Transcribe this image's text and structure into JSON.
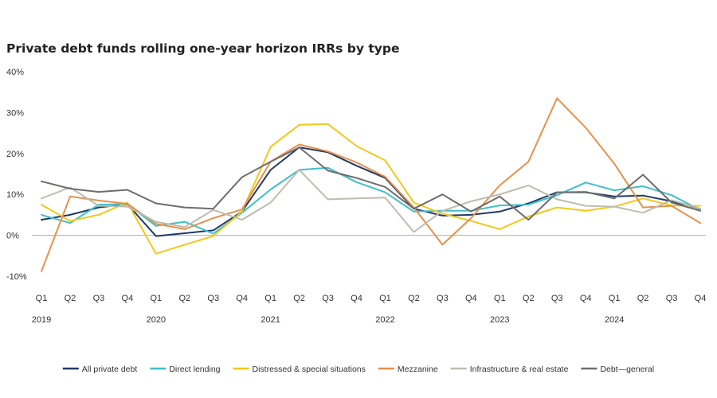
{
  "chart_data": {
    "type": "line",
    "title": "Private debt funds rolling one-year horizon IRRs by type",
    "xlabel": "",
    "ylabel": "",
    "ylim": [
      -10,
      40
    ],
    "y_ticks": [
      "-10%",
      "0%",
      "10%",
      "20%",
      "30%",
      "40%"
    ],
    "y_tick_values": [
      -10,
      0,
      10,
      20,
      30,
      40
    ],
    "quarters": [
      "Q1",
      "Q2",
      "Q3",
      "Q4",
      "Q1",
      "Q2",
      "Q3",
      "Q4",
      "Q1",
      "Q2",
      "Q3",
      "Q4",
      "Q1",
      "Q2",
      "Q3",
      "Q4",
      "Q1",
      "Q2",
      "Q3",
      "Q4",
      "Q1",
      "Q2",
      "Q3",
      "Q4"
    ],
    "years": [
      "2019",
      "2020",
      "2021",
      "2022",
      "2023",
      "2024"
    ],
    "x": [
      "Q1 2019",
      "Q2 2019",
      "Q3 2019",
      "Q4 2019",
      "Q1 2020",
      "Q2 2020",
      "Q3 2020",
      "Q4 2020",
      "Q1 2021",
      "Q2 2021",
      "Q3 2021",
      "Q4 2021",
      "Q1 2022",
      "Q2 2022",
      "Q3 2022",
      "Q4 2022",
      "Q1 2023",
      "Q2 2023",
      "Q3 2023",
      "Q4 2023",
      "Q1 2024",
      "Q2 2024",
      "Q3 2024",
      "Q4 2024"
    ],
    "grid": false,
    "legend_position": "bottom",
    "series": [
      {
        "name": "All private debt",
        "color": "#1f3a68",
        "values": [
          3.8,
          5.0,
          6.8,
          7.6,
          -0.2,
          0.5,
          1.2,
          5.8,
          16.0,
          21.5,
          20.3,
          17.0,
          14.0,
          6.5,
          4.8,
          5.0,
          5.8,
          7.8,
          10.5,
          10.5,
          9.5,
          9.7,
          8.3,
          6.5
        ]
      },
      {
        "name": "Direct lending",
        "color": "#3fbfc8",
        "values": [
          5.0,
          3.0,
          7.5,
          7.6,
          2.3,
          3.3,
          0.4,
          5.5,
          11.2,
          16.0,
          16.5,
          13.0,
          10.5,
          5.8,
          6.0,
          6.0,
          7.3,
          7.5,
          9.8,
          12.9,
          11.0,
          12.0,
          9.8,
          6.2
        ]
      },
      {
        "name": "Distressed & special situations",
        "color": "#f2c81a",
        "values": [
          7.5,
          3.5,
          5.0,
          8.0,
          -4.5,
          -2.3,
          -0.2,
          5.8,
          21.6,
          27.0,
          27.2,
          21.8,
          18.3,
          8.0,
          5.3,
          3.5,
          1.5,
          4.6,
          6.8,
          6.0,
          7.0,
          9.0,
          7.3,
          7.2
        ]
      },
      {
        "name": "Mezzanine",
        "color": "#e8904a",
        "values": [
          -8.8,
          9.5,
          8.5,
          7.7,
          2.8,
          1.5,
          4.2,
          6.3,
          18.0,
          22.2,
          20.5,
          17.8,
          14.3,
          6.8,
          -2.3,
          4.2,
          12.2,
          18.0,
          33.5,
          26.3,
          17.5,
          6.8,
          7.2,
          3.0
        ]
      },
      {
        "name": "Infrastructure & real estate",
        "color": "#bcbcb0",
        "values": [
          9.0,
          11.7,
          7.2,
          7.0,
          3.3,
          2.0,
          6.2,
          3.8,
          8.0,
          16.0,
          8.8,
          9.0,
          9.2,
          0.8,
          6.0,
          8.3,
          10.0,
          12.2,
          8.8,
          7.2,
          7.0,
          5.5,
          8.6,
          6.5
        ]
      },
      {
        "name": "Debt—general",
        "color": "#6d6d6d",
        "values": [
          13.2,
          11.4,
          10.6,
          11.1,
          7.8,
          6.8,
          6.5,
          14.2,
          18.0,
          21.5,
          15.8,
          14.0,
          11.8,
          6.5,
          10.0,
          5.8,
          9.5,
          3.8,
          10.5,
          10.6,
          9.0,
          14.8,
          8.0,
          6.0
        ]
      }
    ]
  }
}
